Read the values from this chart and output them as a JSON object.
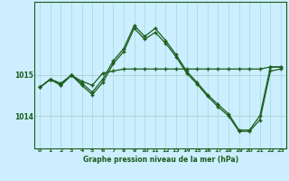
{
  "title": "Graphe pression niveau de la mer (hPa)",
  "bg_color": "#cceeff",
  "line_color": "#1a5c1a",
  "grid_color": "#99dddd",
  "xlim": [
    -0.5,
    23.5
  ],
  "ylim": [
    1013.2,
    1016.8
  ],
  "yticks": [
    1014,
    1015
  ],
  "xticks": [
    0,
    1,
    2,
    3,
    4,
    5,
    6,
    7,
    8,
    9,
    10,
    11,
    12,
    13,
    14,
    15,
    16,
    17,
    18,
    19,
    20,
    21,
    22,
    23
  ],
  "hours": [
    0,
    1,
    2,
    3,
    4,
    5,
    6,
    7,
    8,
    9,
    10,
    11,
    12,
    13,
    14,
    15,
    16,
    17,
    18,
    19,
    20,
    21,
    22,
    23
  ],
  "sA": [
    1014.7,
    1014.9,
    1014.8,
    1015.0,
    1014.85,
    1014.75,
    1015.05,
    1015.1,
    1015.15,
    1015.15,
    1015.15,
    1015.15,
    1015.15,
    1015.15,
    1015.15,
    1015.15,
    1015.15,
    1015.15,
    1015.15,
    1015.15,
    1015.15,
    1015.15,
    1015.2,
    1015.2
  ],
  "sB": [
    1014.7,
    1014.9,
    1014.75,
    1015.0,
    1014.8,
    1014.58,
    1014.9,
    1015.35,
    1015.65,
    1016.22,
    1015.95,
    1016.15,
    1015.85,
    1015.5,
    1015.1,
    1014.82,
    1014.52,
    1014.28,
    1014.05,
    1013.65,
    1013.65,
    1014.0,
    1015.2,
    1015.2
  ],
  "sC": [
    1014.7,
    1014.9,
    1014.75,
    1015.0,
    1014.75,
    1014.52,
    1014.82,
    1015.28,
    1015.58,
    1016.15,
    1015.88,
    1016.05,
    1015.78,
    1015.45,
    1015.05,
    1014.78,
    1014.48,
    1014.22,
    1014.0,
    1013.62,
    1013.62,
    1013.9,
    1015.1,
    1015.15
  ]
}
